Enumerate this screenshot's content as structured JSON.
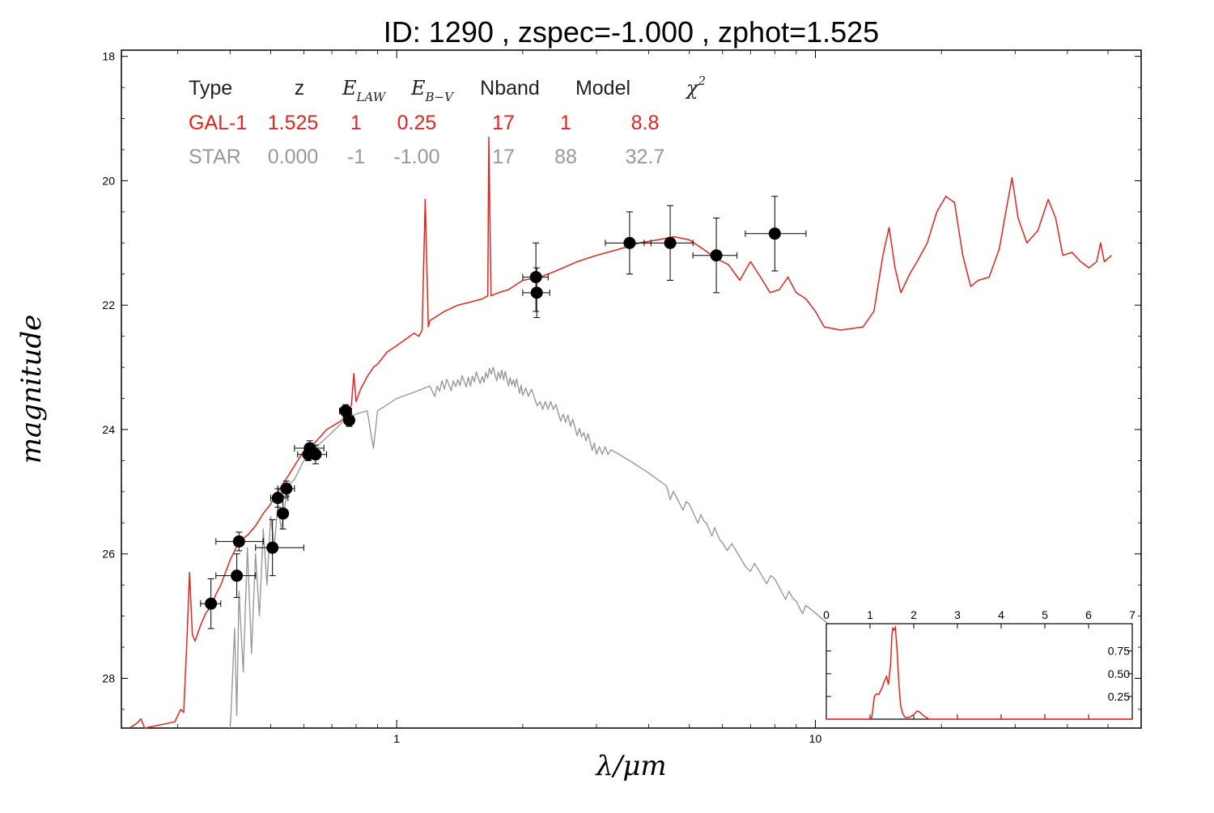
{
  "title": "ID:  1290  , zspec=-1.000 , zphot=1.525",
  "table": {
    "headers": {
      "type": "Type",
      "z": "z",
      "elaw_main": "E",
      "elaw_sub": "LAW",
      "ebv_main": "E",
      "ebv_sub": "B−V",
      "nband": "Nband",
      "model": "Model",
      "chi_main": "χ",
      "chi_sup": "2"
    },
    "rows": [
      {
        "type": "GAL-1",
        "z": "1.525",
        "elaw": "1",
        "ebv": "0.25",
        "nband": "17",
        "model": "1",
        "chi2": "8.8",
        "color": "#e8231c"
      },
      {
        "type": "STAR",
        "z": "0.000",
        "elaw": "-1",
        "ebv": "-1.00",
        "nband": "17",
        "model": "88",
        "chi2": "32.7",
        "color": "#999999"
      }
    ]
  },
  "chart_data": [
    {
      "type": "scatter",
      "xlabel": "λ/μm",
      "ylabel": "magnitude",
      "x_scale": "log",
      "xlim": [
        0.22,
        60
      ],
      "ylim": [
        28.8,
        17.9
      ],
      "y_inverted": true,
      "x_ticks": [
        {
          "v": 1,
          "label": "1"
        },
        {
          "v": 10,
          "label": "10"
        }
      ],
      "y_ticks": [
        {
          "v": 18,
          "label": "18"
        },
        {
          "v": 20,
          "label": "20"
        },
        {
          "v": 22,
          "label": "22"
        },
        {
          "v": 24,
          "label": "24"
        },
        {
          "v": 26,
          "label": "26"
        },
        {
          "v": 28,
          "label": "28"
        }
      ],
      "galaxy_color": "#e8231c",
      "star_color": "#999999",
      "points": [
        {
          "x": 0.36,
          "y": 26.8,
          "xerr": [
            0.34,
            0.38
          ],
          "yerr": 0.4
        },
        {
          "x": 0.42,
          "y": 25.8,
          "xerr": [
            0.37,
            0.48
          ],
          "yerr": 0.15
        },
        {
          "x": 0.415,
          "y": 26.35,
          "xerr": [
            0.37,
            0.46
          ],
          "yerr": 0.35
        },
        {
          "x": 0.505,
          "y": 25.9,
          "xerr": [
            0.46,
            0.6
          ],
          "yerr": 0.45
        },
        {
          "x": 0.52,
          "y": 25.1,
          "xerr": [
            0.5,
            0.55
          ],
          "yerr": 0.15
        },
        {
          "x": 0.545,
          "y": 24.95,
          "xerr": [
            0.52,
            0.57
          ],
          "yerr": 0.12
        },
        {
          "x": 0.535,
          "y": 25.35,
          "xerr": [
            0.52,
            0.55
          ],
          "yerr": 0.25
        },
        {
          "x": 0.62,
          "y": 24.3,
          "xerr": [
            0.57,
            0.67
          ],
          "yerr": 0.12
        },
        {
          "x": 0.64,
          "y": 24.4,
          "xerr": [
            0.6,
            0.68
          ],
          "yerr": 0.15
        },
        {
          "x": 0.615,
          "y": 24.4,
          "xerr": [
            0.58,
            0.65
          ],
          "yerr": 0.1
        },
        {
          "x": 0.755,
          "y": 23.7,
          "xerr": [
            0.73,
            0.78
          ],
          "yerr": 0.1
        },
        {
          "x": 0.77,
          "y": 23.85,
          "xerr": [
            0.75,
            0.79
          ],
          "yerr": 0.1
        },
        {
          "x": 2.15,
          "y": 21.55,
          "xerr": [
            2.0,
            2.3
          ],
          "yerr": 0.55
        },
        {
          "x": 2.16,
          "y": 21.8,
          "xerr": [
            2.0,
            2.32
          ],
          "yerr": 0.4
        },
        {
          "x": 3.6,
          "y": 21.0,
          "xerr": [
            3.15,
            4.05
          ],
          "yerr": 0.5
        },
        {
          "x": 4.5,
          "y": 21.0,
          "xerr": [
            3.9,
            5.1
          ],
          "yerr": 0.6
        },
        {
          "x": 5.8,
          "y": 21.2,
          "xerr": [
            5.1,
            6.5
          ],
          "yerr": 0.6
        },
        {
          "x": 8.0,
          "y": 20.85,
          "xerr": [
            6.8,
            9.5
          ],
          "yerr": 0.6
        }
      ],
      "galaxy_sed": [
        [
          0.23,
          28.9
        ],
        [
          0.24,
          28.72
        ],
        [
          0.245,
          28.65
        ],
        [
          0.25,
          28.9
        ],
        [
          0.295,
          28.7
        ],
        [
          0.3,
          28.6
        ],
        [
          0.305,
          28.5
        ],
        [
          0.31,
          28.55
        ],
        [
          0.315,
          27.5
        ],
        [
          0.32,
          26.3
        ],
        [
          0.325,
          27.3
        ],
        [
          0.33,
          27.4
        ],
        [
          0.34,
          27.15
        ],
        [
          0.35,
          26.95
        ],
        [
          0.36,
          26.85
        ],
        [
          0.37,
          26.65
        ],
        [
          0.38,
          26.5
        ],
        [
          0.4,
          26.1
        ],
        [
          0.42,
          25.8
        ],
        [
          0.44,
          25.7
        ],
        [
          0.46,
          25.55
        ],
        [
          0.48,
          25.35
        ],
        [
          0.5,
          25.2
        ],
        [
          0.52,
          25.0
        ],
        [
          0.55,
          24.75
        ],
        [
          0.58,
          24.5
        ],
        [
          0.6,
          24.35
        ],
        [
          0.62,
          24.3
        ],
        [
          0.64,
          24.2
        ],
        [
          0.66,
          24.1
        ],
        [
          0.68,
          24.0
        ],
        [
          0.7,
          23.95
        ],
        [
          0.72,
          23.9
        ],
        [
          0.74,
          23.85
        ],
        [
          0.76,
          23.75
        ],
        [
          0.78,
          23.6
        ],
        [
          0.79,
          23.1
        ],
        [
          0.8,
          23.55
        ],
        [
          0.82,
          23.35
        ],
        [
          0.85,
          23.15
        ],
        [
          0.88,
          23.0
        ],
        [
          0.9,
          22.95
        ],
        [
          0.95,
          22.75
        ],
        [
          1.0,
          22.65
        ],
        [
          1.05,
          22.55
        ],
        [
          1.1,
          22.45
        ],
        [
          1.13,
          22.5
        ],
        [
          1.15,
          22.4
        ],
        [
          1.17,
          20.3
        ],
        [
          1.19,
          22.35
        ],
        [
          1.2,
          22.25
        ],
        [
          1.3,
          22.1
        ],
        [
          1.4,
          22.0
        ],
        [
          1.5,
          21.95
        ],
        [
          1.6,
          21.9
        ],
        [
          1.65,
          21.85
        ],
        [
          1.66,
          19.3
        ],
        [
          1.68,
          21.85
        ],
        [
          1.75,
          21.8
        ],
        [
          1.85,
          21.75
        ],
        [
          2.0,
          21.6
        ],
        [
          2.2,
          21.55
        ],
        [
          2.4,
          21.45
        ],
        [
          2.7,
          21.3
        ],
        [
          3.0,
          21.2
        ],
        [
          3.4,
          21.1
        ],
        [
          3.8,
          21.0
        ],
        [
          4.2,
          20.95
        ],
        [
          4.6,
          20.9
        ],
        [
          5.0,
          20.95
        ],
        [
          5.4,
          21.1
        ],
        [
          5.8,
          21.25
        ],
        [
          6.2,
          21.35
        ],
        [
          6.6,
          21.6
        ],
        [
          7.0,
          21.3
        ],
        [
          7.4,
          21.55
        ],
        [
          7.8,
          21.8
        ],
        [
          8.2,
          21.75
        ],
        [
          8.6,
          21.55
        ],
        [
          9.0,
          21.8
        ],
        [
          9.5,
          21.9
        ],
        [
          10.0,
          22.1
        ],
        [
          10.5,
          22.35
        ],
        [
          11.5,
          22.4
        ],
        [
          13.0,
          22.35
        ],
        [
          13.8,
          22.1
        ],
        [
          14.5,
          21.2
        ],
        [
          15.0,
          20.75
        ],
        [
          15.5,
          21.4
        ],
        [
          16.0,
          21.8
        ],
        [
          16.8,
          21.5
        ],
        [
          17.5,
          21.3
        ],
        [
          18.5,
          21.0
        ],
        [
          19.5,
          20.5
        ],
        [
          20.5,
          20.25
        ],
        [
          21.5,
          20.35
        ],
        [
          22.5,
          21.2
        ],
        [
          23.5,
          21.7
        ],
        [
          24.5,
          21.6
        ],
        [
          26.0,
          21.55
        ],
        [
          27.5,
          21.1
        ],
        [
          28.5,
          20.5
        ],
        [
          29.5,
          19.95
        ],
        [
          30.5,
          20.6
        ],
        [
          32.0,
          21.0
        ],
        [
          34.0,
          20.8
        ],
        [
          36.0,
          20.3
        ],
        [
          37.5,
          20.6
        ],
        [
          39.0,
          21.2
        ],
        [
          41.0,
          21.15
        ],
        [
          43.0,
          21.3
        ],
        [
          45.0,
          21.4
        ],
        [
          47.0,
          21.3
        ],
        [
          48.0,
          21.0
        ],
        [
          49.0,
          21.3
        ],
        [
          51.0,
          21.2
        ]
      ],
      "star_sed": [
        [
          0.4,
          28.9
        ],
        [
          0.41,
          27.2
        ],
        [
          0.415,
          28.6
        ],
        [
          0.42,
          26.6
        ],
        [
          0.43,
          27.9
        ],
        [
          0.44,
          25.9
        ],
        [
          0.45,
          27.6
        ],
        [
          0.46,
          26.0
        ],
        [
          0.47,
          27.0
        ],
        [
          0.48,
          25.6
        ],
        [
          0.49,
          26.5
        ],
        [
          0.5,
          25.4
        ],
        [
          0.51,
          25.9
        ],
        [
          0.52,
          25.2
        ],
        [
          0.53,
          25.6
        ],
        [
          0.55,
          24.9
        ],
        [
          0.57,
          24.8
        ],
        [
          0.6,
          24.5
        ],
        [
          0.62,
          24.4
        ],
        [
          0.65,
          24.25
        ],
        [
          0.7,
          24.05
        ],
        [
          0.75,
          23.85
        ],
        [
          0.8,
          23.75
        ],
        [
          0.85,
          23.7
        ],
        [
          0.88,
          24.3
        ],
        [
          0.9,
          23.7
        ],
        [
          0.95,
          23.6
        ],
        [
          1.0,
          23.5
        ],
        [
          1.05,
          23.45
        ],
        [
          1.1,
          23.4
        ],
        [
          1.2,
          23.3
        ],
        [
          1.3,
          23.2
        ],
        [
          1.4,
          23.15
        ],
        [
          1.5,
          23.1
        ],
        [
          1.6,
          23.05
        ],
        [
          1.7,
          23.0
        ],
        [
          1.8,
          23.05
        ],
        [
          1.9,
          23.15
        ],
        [
          2.0,
          23.25
        ],
        [
          2.2,
          23.45
        ],
        [
          2.4,
          23.6
        ],
        [
          2.6,
          23.8
        ],
        [
          2.8,
          24.0
        ],
        [
          3.0,
          24.2
        ],
        [
          3.3,
          24.35
        ],
        [
          3.6,
          24.5
        ],
        [
          4.0,
          24.7
        ],
        [
          4.5,
          24.95
        ],
        [
          5.0,
          25.2
        ],
        [
          5.5,
          25.45
        ],
        [
          6.0,
          25.7
        ],
        [
          7.0,
          26.1
        ],
        [
          8.0,
          26.4
        ],
        [
          9.0,
          26.7
        ],
        [
          10.0,
          26.95
        ],
        [
          11.5,
          27.3
        ],
        [
          13.0,
          27.55
        ]
      ]
    },
    {
      "type": "line",
      "name": "inset",
      "xlim": [
        0,
        7
      ],
      "ylim": [
        0,
        1.05
      ],
      "x_ticks": [
        0,
        1,
        2,
        3,
        4,
        5,
        6,
        7
      ],
      "y_ticks": [
        0.25,
        0.5,
        0.75
      ],
      "y_tick_labels": [
        "0.25",
        "0.50",
        "0.75"
      ],
      "color": "#e8231c",
      "pdz": [
        [
          0,
          0.0
        ],
        [
          1.0,
          0.0
        ],
        [
          1.04,
          0.02
        ],
        [
          1.1,
          0.25
        ],
        [
          1.15,
          0.28
        ],
        [
          1.2,
          0.27
        ],
        [
          1.28,
          0.35
        ],
        [
          1.33,
          0.42
        ],
        [
          1.38,
          0.47
        ],
        [
          1.42,
          0.38
        ],
        [
          1.47,
          0.6
        ],
        [
          1.5,
          0.92
        ],
        [
          1.52,
          1.0
        ],
        [
          1.55,
          0.98
        ],
        [
          1.58,
          1.01
        ],
        [
          1.62,
          0.75
        ],
        [
          1.66,
          0.4
        ],
        [
          1.7,
          0.15
        ],
        [
          1.75,
          0.06
        ],
        [
          1.8,
          0.02
        ],
        [
          1.9,
          0.02
        ],
        [
          2.0,
          0.05
        ],
        [
          2.08,
          0.09
        ],
        [
          2.13,
          0.08
        ],
        [
          2.22,
          0.04
        ],
        [
          2.35,
          0.0
        ],
        [
          7,
          0.0
        ]
      ]
    }
  ]
}
